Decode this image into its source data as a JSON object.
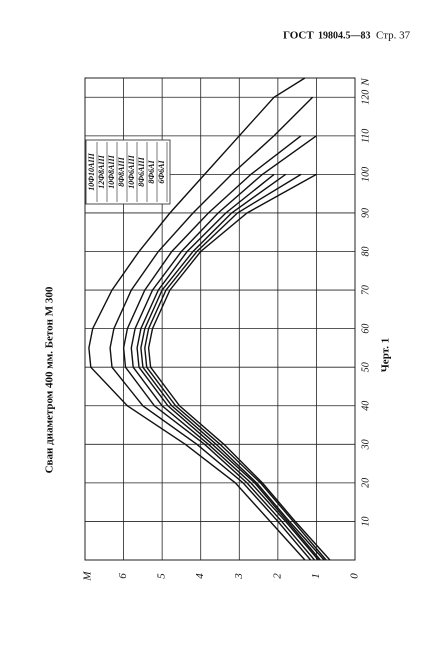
{
  "header": {
    "code": "ГОСТ",
    "number": "19804.5—83",
    "page": "Стр. 37"
  },
  "caption": "Черт. 1",
  "chart_data": {
    "type": "line",
    "title": "Сваи диаметром 400 мм. Бетон М 300",
    "x_label": "N",
    "y_label": "M",
    "x": [
      0,
      10,
      20,
      30,
      40,
      50,
      55,
      60,
      70,
      80,
      90,
      100,
      110,
      120,
      125
    ],
    "xlim": [
      0,
      125
    ],
    "xticks": [
      10,
      20,
      30,
      40,
      50,
      60,
      70,
      80,
      90,
      100,
      110,
      120
    ],
    "ylim": [
      0,
      7
    ],
    "yticks": [
      0,
      1,
      2,
      3,
      4,
      5,
      6
    ],
    "grid": true,
    "series": [
      {
        "name": "10Ф10АIII",
        "color": "#111",
        "values": [
          1.3,
          2.2,
          3.1,
          4.4,
          5.9,
          6.85,
          6.9,
          6.8,
          6.3,
          5.6,
          4.8,
          3.9,
          3.0,
          2.1,
          1.3
        ]
      },
      {
        "name": "12Ф8АIII",
        "color": "#111",
        "values": [
          1.15,
          2.0,
          2.9,
          4.1,
          5.5,
          6.3,
          6.35,
          6.25,
          5.8,
          5.1,
          4.2,
          3.2,
          2.1,
          1.1,
          null
        ]
      },
      {
        "name": "10Ф8АIII",
        "color": "#111",
        "values": [
          1.05,
          1.9,
          2.8,
          3.9,
          5.2,
          5.95,
          6.0,
          5.9,
          5.45,
          4.75,
          3.8,
          2.7,
          1.4,
          null,
          null
        ]
      },
      {
        "name": "8Ф8АIII",
        "color": "#111",
        "values": [
          0.95,
          1.8,
          2.7,
          3.8,
          5.0,
          5.75,
          5.8,
          5.7,
          5.25,
          4.5,
          3.55,
          2.4,
          1.0,
          null,
          null
        ]
      },
      {
        "name": "10Ф6АIII",
        "color": "#111",
        "values": [
          0.9,
          1.75,
          2.6,
          3.7,
          4.85,
          5.6,
          5.65,
          5.55,
          5.1,
          4.35,
          3.35,
          2.1,
          null,
          null,
          null
        ]
      },
      {
        "name": "8Ф6АIII",
        "color": "#111",
        "values": [
          0.8,
          1.7,
          2.55,
          3.6,
          4.75,
          5.5,
          5.55,
          5.45,
          5.0,
          4.2,
          3.2,
          1.8,
          null,
          null,
          null
        ]
      },
      {
        "name": "8Ф6АI",
        "color": "#111",
        "values": [
          0.75,
          1.6,
          2.45,
          3.5,
          4.65,
          5.4,
          5.45,
          5.35,
          4.9,
          4.1,
          3.05,
          1.4,
          null,
          null,
          null
        ]
      },
      {
        "name": "6Ф6АI",
        "color": "#111",
        "values": [
          0.65,
          1.55,
          2.4,
          3.4,
          4.55,
          5.3,
          5.35,
          5.25,
          4.8,
          4.0,
          2.8,
          1.0,
          null,
          null,
          null
        ]
      }
    ]
  }
}
